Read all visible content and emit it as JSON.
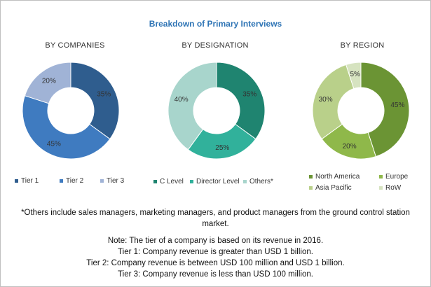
{
  "title": "Breakdown of Primary Interviews",
  "chart_data": [
    {
      "type": "pie",
      "title": "BY COMPANIES",
      "categories": [
        "Tier 1",
        "Tier 2",
        "Tier 3"
      ],
      "values": [
        35,
        45,
        20
      ],
      "labels": [
        "35%",
        "45%",
        "20%"
      ],
      "colors": [
        "#2f5d8e",
        "#3f7bc0",
        "#a0b3d6"
      ],
      "legend_placement": "bottom"
    },
    {
      "type": "pie",
      "title": "BY DESIGNATION",
      "categories": [
        "C Level",
        "Director Level",
        "Others*"
      ],
      "values": [
        35,
        25,
        40
      ],
      "labels": [
        "35%",
        "25%",
        "40%"
      ],
      "colors": [
        "#1f8470",
        "#31b19b",
        "#a8d5cc"
      ],
      "legend_placement": "bottom"
    },
    {
      "type": "pie",
      "title": "BY REGION",
      "categories": [
        "North America",
        "Europe",
        "Asia Pacific",
        "RoW"
      ],
      "values": [
        45,
        20,
        30,
        5
      ],
      "labels": [
        "45%",
        "20%",
        "30%",
        "5%"
      ],
      "colors": [
        "#6b9434",
        "#8fb84a",
        "#b9d08a",
        "#d6e3c0"
      ],
      "legend_placement": "bottom"
    }
  ],
  "footnote": {
    "line1": "*Others include sales managers, marketing managers, and product managers from the ground control station",
    "line2": "market."
  },
  "notes": [
    "Note: The tier of a company is based on its revenue in 2016.",
    "Tier 1: Company revenue is greater than USD 1 billion.",
    "Tier 2: Company revenue is between USD 100 million and USD 1 billion.",
    "Tier 3: Company revenue is less than USD 100 million."
  ]
}
